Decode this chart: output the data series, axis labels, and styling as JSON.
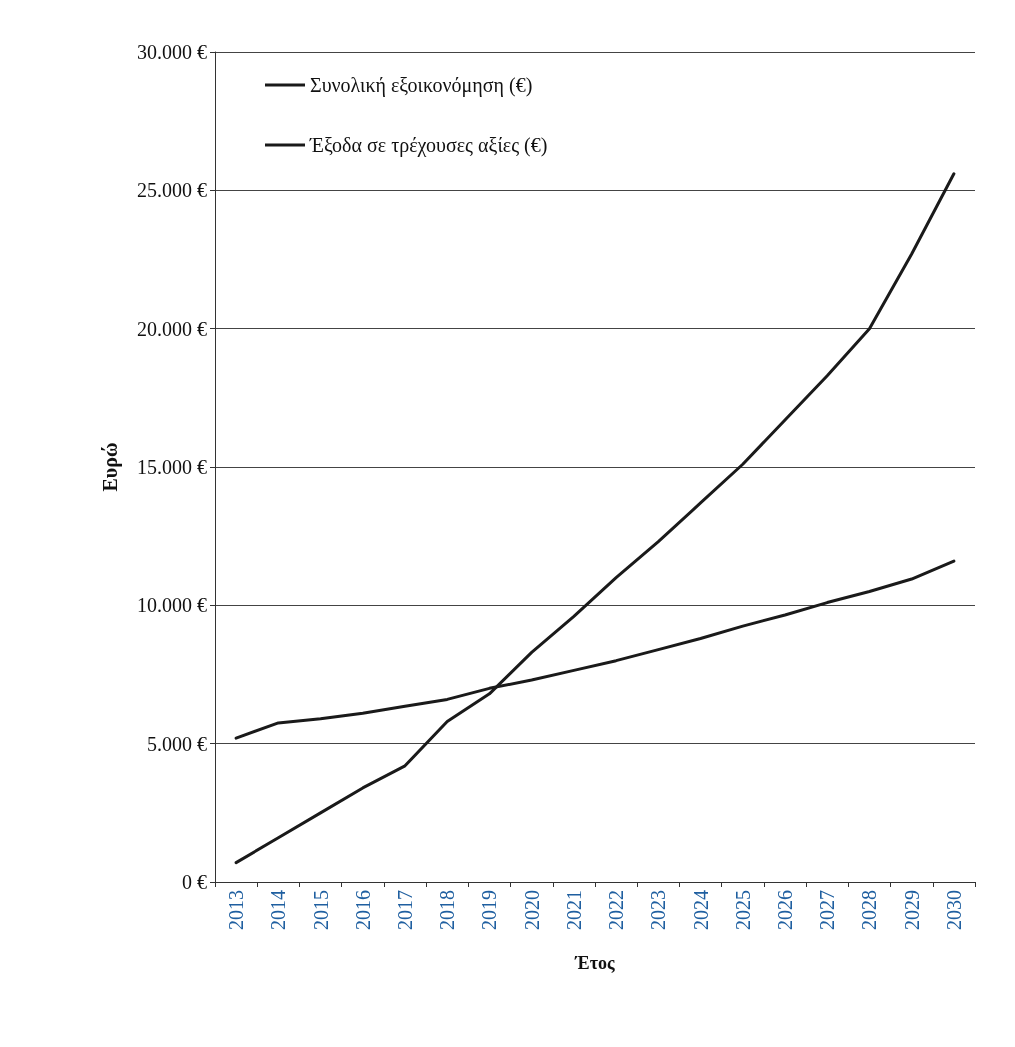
{
  "chart_data": {
    "type": "line",
    "xlabel": "Έτος",
    "ylabel": "Ευρώ",
    "categories": [
      "2013",
      "2014",
      "2015",
      "2016",
      "2017",
      "2018",
      "2019",
      "2020",
      "2021",
      "2022",
      "2023",
      "2024",
      "2025",
      "2026",
      "2027",
      "2028",
      "2029",
      "2030"
    ],
    "series": [
      {
        "name": "Συνολική εξοικονόμηση (€)",
        "color": "#1a1a1a",
        "values": [
          700,
          1600,
          2500,
          3400,
          4200,
          5800,
          6800,
          8300,
          9600,
          11000,
          12300,
          13700,
          15100,
          16700,
          18300,
          20000,
          22700,
          25600
        ]
      },
      {
        "name": "Έξοδα σε τρέχουσες αξίες (€)",
        "color": "#1a1a1a",
        "values": [
          5200,
          5750,
          5900,
          6100,
          6350,
          6600,
          7000,
          7300,
          7650,
          8000,
          8400,
          8800,
          9250,
          9650,
          10100,
          10500,
          10950,
          11600
        ]
      }
    ],
    "ylim": [
      0,
      30000
    ],
    "yticks": [
      {
        "value": 0,
        "label": "0 €"
      },
      {
        "value": 5000,
        "label": "5.000 €"
      },
      {
        "value": 10000,
        "label": "10.000 €"
      },
      {
        "value": 15000,
        "label": "15.000 €"
      },
      {
        "value": 20000,
        "label": "20.000 €"
      },
      {
        "value": 25000,
        "label": "25.000 €"
      },
      {
        "value": 30000,
        "label": "30.000 €"
      }
    ],
    "grid": "y",
    "legend": "top left",
    "marker": "none",
    "line_style": "solid"
  }
}
